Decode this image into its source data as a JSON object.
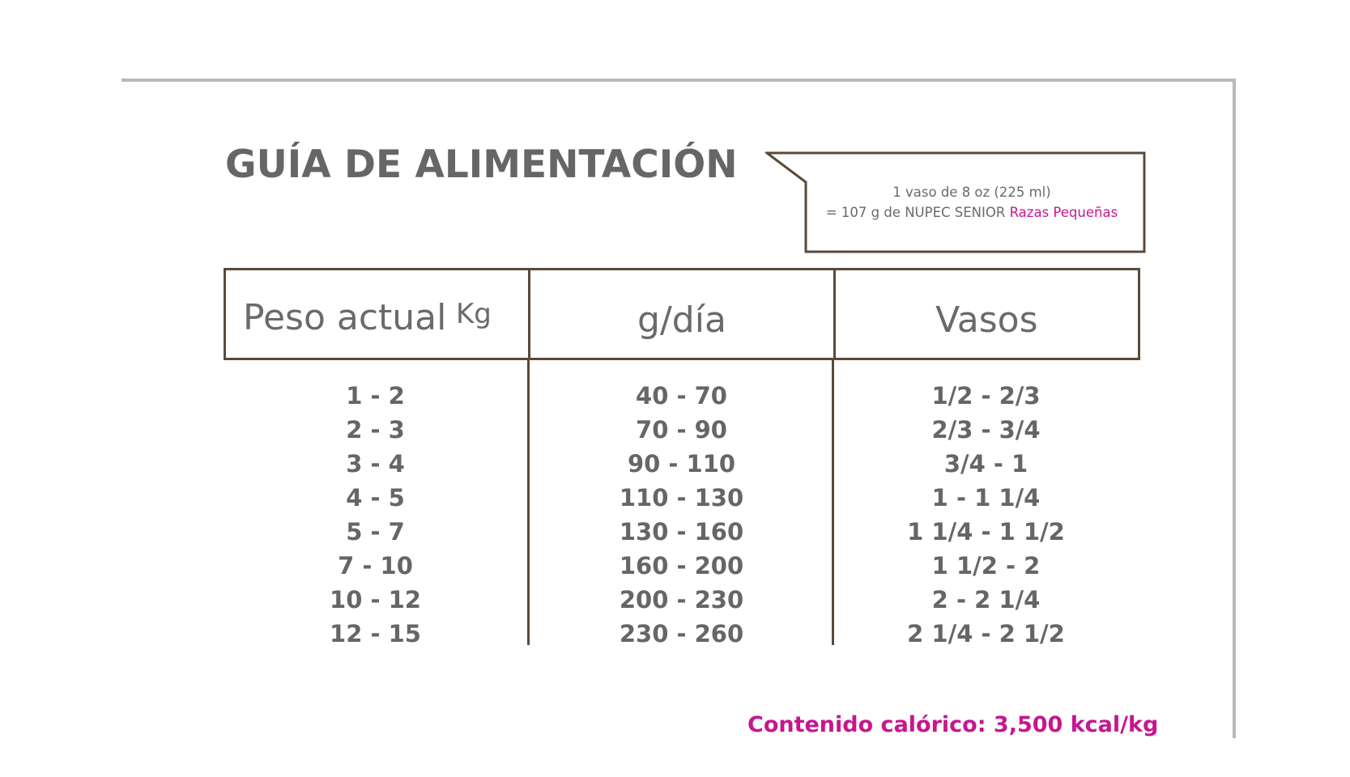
{
  "title": "GUÍA DE ALIMENTACIÓN",
  "callout": {
    "line1": "1 vaso de 8 oz (225 ml)",
    "line2_prefix": "= 107 g de NUPEC SENIOR ",
    "line2_highlight": "Razas Pequeñas"
  },
  "table": {
    "headers": {
      "peso": "Peso actual",
      "peso_unit": "Kg",
      "gdia": "g/día",
      "vasos": "Vasos"
    },
    "rows": [
      {
        "peso": "1 - 2",
        "gdia": "40 - 70",
        "vasos": "1/2 - 2/3"
      },
      {
        "peso": "2 - 3",
        "gdia": "70 - 90",
        "vasos": "2/3 - 3/4"
      },
      {
        "peso": "3 - 4",
        "gdia": "90 - 110",
        "vasos": "3/4 - 1"
      },
      {
        "peso": "4 - 5",
        "gdia": "110 - 130",
        "vasos": "1 - 1 1/4"
      },
      {
        "peso": "5 - 7",
        "gdia": "130 - 160",
        "vasos": "1 1/4 - 1 1/2"
      },
      {
        "peso": "7 - 10",
        "gdia": "160 - 200",
        "vasos": "1 1/2 - 2"
      },
      {
        "peso": "10 - 12",
        "gdia": "200 - 230",
        "vasos": "2 - 2 1/4"
      },
      {
        "peso": "12 - 15",
        "gdia": "230 - 260",
        "vasos": "2 1/4 - 2 1/2"
      }
    ]
  },
  "footer": "Contenido calórico: 3,500 kcal/kg",
  "colors": {
    "text_gray": "#666666",
    "border_brown": "#5b4a37",
    "accent_magenta": "#c7168f",
    "frame_gray": "#b9b9b9"
  }
}
